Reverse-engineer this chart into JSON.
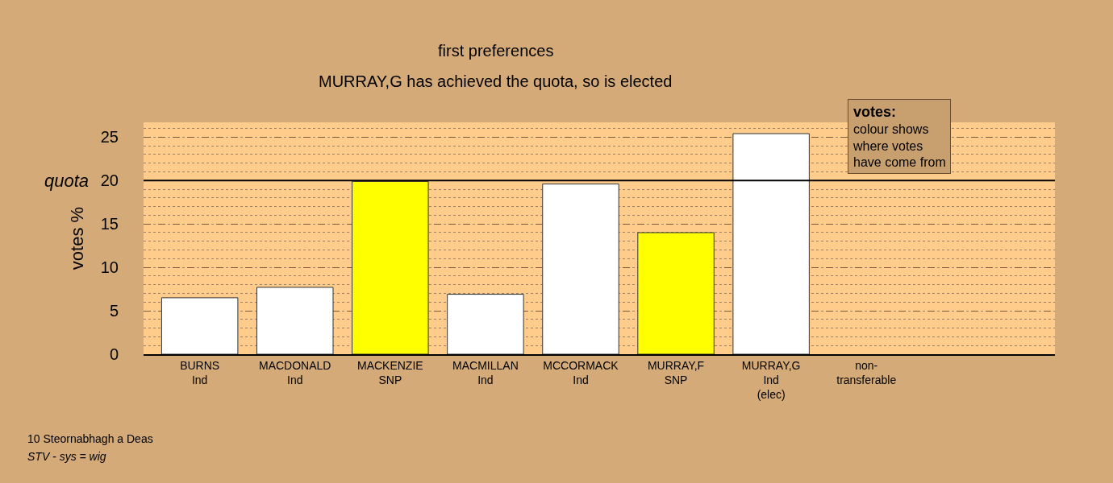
{
  "chart_data": {
    "type": "bar",
    "title": "first preferences",
    "subtitle": "MURRAY,G has achieved the quota, so is elected",
    "ylabel": "votes %",
    "categories": [
      "BURNS\nInd",
      "MACDONALD\nInd",
      "MACKENZIE\nSNP",
      "MACMILLAN\nInd",
      "MCCORMACK\nInd",
      "MURRAY,F\nSNP",
      "MURRAY,G\nInd\n(elec)",
      "non-\ntransferable"
    ],
    "values": [
      6.5,
      7.7,
      19.9,
      6.9,
      19.6,
      14.0,
      25.4,
      null
    ],
    "colors": [
      "#ffffff",
      "#ffffff",
      "#ffff00",
      "#ffffff",
      "#ffffff",
      "#ffff00",
      "#ffffff",
      "#ffffff"
    ],
    "ylim": [
      0,
      26.7
    ],
    "yticks": [
      0,
      5,
      10,
      15,
      20,
      25
    ],
    "grid": "y",
    "ref_lines": [
      {
        "axis": "y",
        "value": 20,
        "label": "quota",
        "color": "#000000",
        "line_style": "solid"
      }
    ],
    "annotations": [
      "votes:",
      "colour shows\nwhere votes\nhave come from",
      "10 Steornabhagh a Deas",
      "STV - sys = wig"
    ]
  }
}
